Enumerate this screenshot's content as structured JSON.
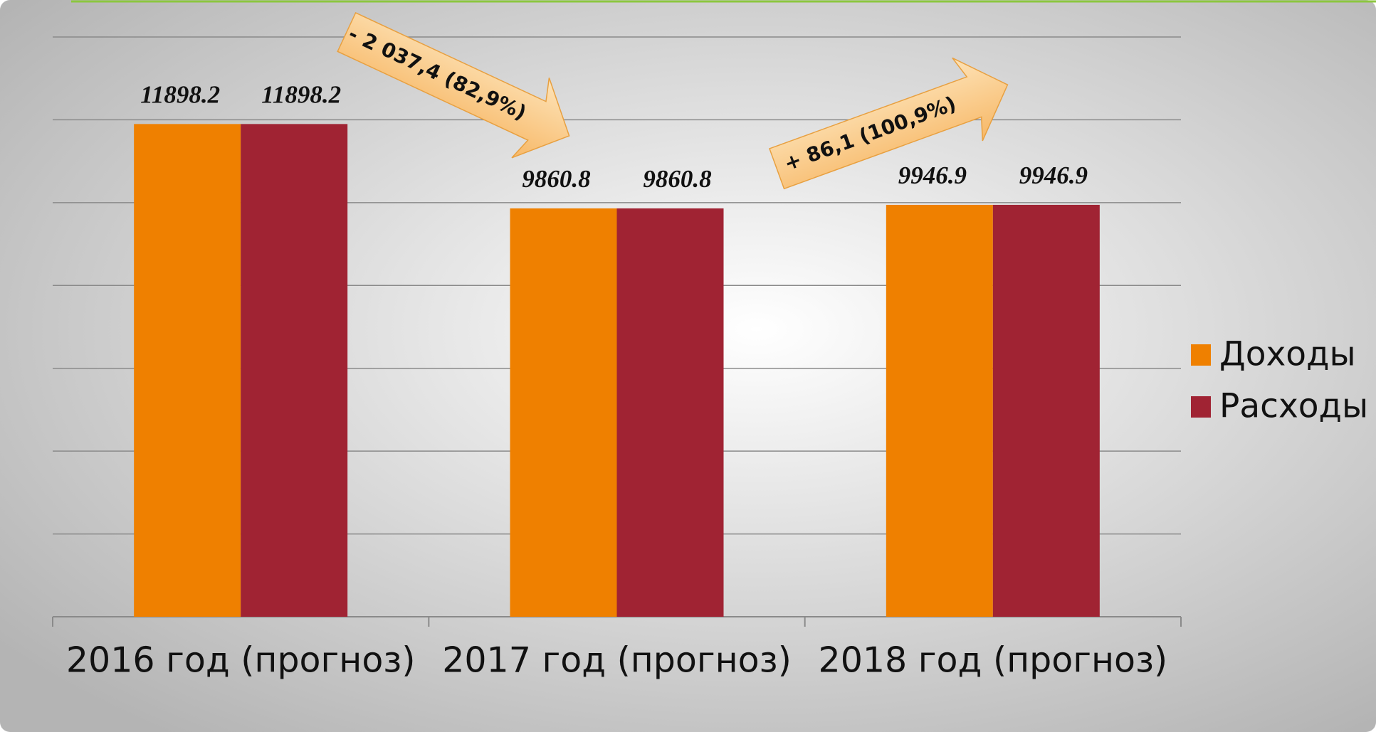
{
  "chart_data": {
    "type": "bar",
    "categories": [
      "2016 год (прогноз)",
      "2017 год (прогноз)",
      "2018 год (прогноз)"
    ],
    "series": [
      {
        "name": "Доходы",
        "color": "#ef8000",
        "values": [
          11898.2,
          9860.8,
          9946.9
        ]
      },
      {
        "name": "Расходы",
        "color": "#a02333",
        "values": [
          11898.2,
          9860.8,
          9946.9
        ]
      }
    ],
    "ylim": [
      0,
      14000
    ],
    "yticks": [
      0,
      2000,
      4000,
      6000,
      8000,
      10000,
      12000,
      14000
    ],
    "grid": true,
    "legend": "right",
    "annotations": [
      "- 2 037,4 (82,9%)",
      "+ 86,1 (100,9%)"
    ]
  }
}
